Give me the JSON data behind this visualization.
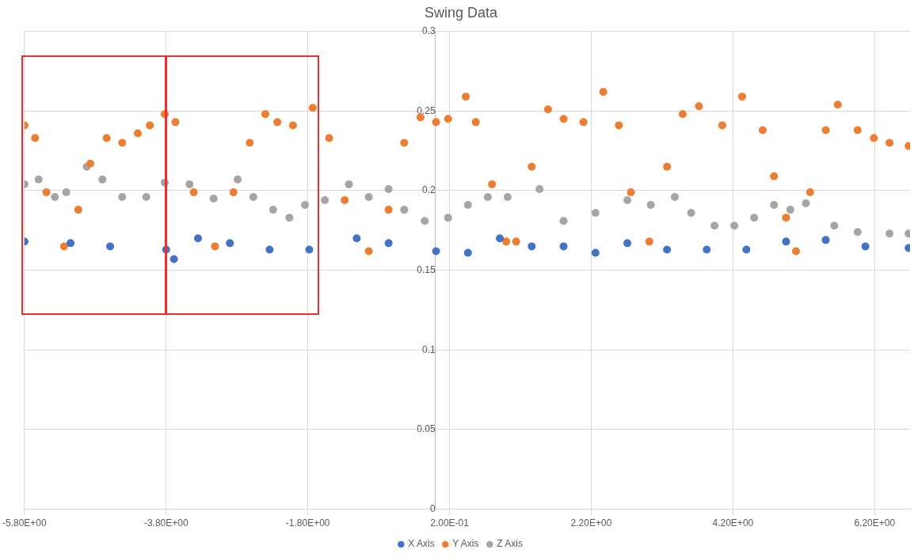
{
  "chart_data": {
    "type": "scatter",
    "title": "Swing Data",
    "marker": "circle",
    "grid": true,
    "legend": "bottom",
    "xlim": [
      -5.8,
      6.7
    ],
    "xticks": [
      {
        "value": -5.8,
        "label": "-5.80E+00"
      },
      {
        "value": -3.8,
        "label": "-3.80E+00"
      },
      {
        "value": -1.8,
        "label": "-1.80E+00"
      },
      {
        "value": 0.2,
        "label": "2.00E-01"
      },
      {
        "value": 2.2,
        "label": "2.20E+00"
      },
      {
        "value": 4.2,
        "label": "4.20E+00"
      },
      {
        "value": 6.2,
        "label": "6.20E+00"
      }
    ],
    "ylim": [
      0,
      0.3
    ],
    "yticks": [
      0,
      0.05,
      0.1,
      0.15,
      0.2,
      0.25,
      0.3
    ],
    "series": [
      {
        "name": "X Axis",
        "color": "#4472c4",
        "x": [
          -5.8,
          -5.15,
          -4.59,
          -3.8,
          -3.69,
          -3.35,
          -2.9,
          -2.34,
          -1.78,
          -1.11,
          -0.66,
          0.01,
          0.46,
          0.91,
          1.36,
          1.81,
          2.26,
          2.71,
          3.27,
          3.83,
          4.39,
          4.95,
          5.51,
          6.07,
          6.68
        ],
        "values": [
          0.168,
          0.167,
          0.165,
          0.163,
          0.157,
          0.17,
          0.167,
          0.163,
          0.163,
          0.17,
          0.167,
          0.162,
          0.161,
          0.17,
          0.165,
          0.165,
          0.161,
          0.167,
          0.163,
          0.163,
          0.163,
          0.168,
          0.169,
          0.165,
          0.164
        ]
      },
      {
        "name": "Y Axis",
        "color": "#ed7d31",
        "x": [
          -5.8,
          -5.65,
          -5.49,
          -5.24,
          -5.04,
          -4.87,
          -4.64,
          -4.42,
          -4.2,
          -4.03,
          -3.82,
          -3.67,
          -3.41,
          -3.11,
          -2.85,
          -2.62,
          -2.4,
          -2.23,
          -2.01,
          -1.73,
          -1.5,
          -1.28,
          -0.94,
          -0.66,
          -0.44,
          -0.21,
          0.01,
          0.18,
          0.43,
          0.57,
          0.8,
          1.0,
          1.14,
          1.36,
          1.59,
          1.81,
          2.09,
          2.37,
          2.59,
          2.76,
          3.02,
          3.27,
          3.49,
          3.72,
          4.05,
          4.33,
          4.62,
          4.78,
          4.95,
          5.09,
          5.29,
          5.51,
          5.68,
          5.96,
          6.19,
          6.41,
          6.68
        ],
        "values": [
          0.241,
          0.233,
          0.199,
          0.165,
          0.188,
          0.217,
          0.233,
          0.23,
          0.236,
          0.241,
          0.248,
          0.243,
          0.199,
          0.165,
          0.199,
          0.23,
          0.248,
          0.243,
          0.241,
          0.252,
          0.233,
          0.194,
          0.162,
          0.188,
          0.23,
          0.246,
          0.243,
          0.245,
          0.259,
          0.243,
          0.204,
          0.168,
          0.168,
          0.215,
          0.251,
          0.245,
          0.243,
          0.262,
          0.241,
          0.199,
          0.168,
          0.215,
          0.248,
          0.253,
          0.241,
          0.259,
          0.238,
          0.209,
          0.183,
          0.162,
          0.199,
          0.238,
          0.254,
          0.238,
          0.233,
          0.23,
          0.228
        ]
      },
      {
        "name": "Z Axis",
        "color": "#a5a5a5",
        "x": [
          -5.8,
          -5.6,
          -5.37,
          -5.21,
          -4.92,
          -4.7,
          -4.42,
          -4.08,
          -3.82,
          -3.47,
          -3.13,
          -2.79,
          -2.57,
          -2.29,
          -2.06,
          -1.84,
          -1.56,
          -1.22,
          -0.94,
          -0.66,
          -0.44,
          -0.15,
          0.18,
          0.46,
          0.74,
          1.02,
          1.47,
          1.81,
          2.26,
          2.71,
          3.04,
          3.38,
          3.61,
          3.94,
          4.22,
          4.5,
          4.78,
          5.01,
          5.23,
          5.63,
          5.96,
          6.41,
          6.68
        ],
        "values": [
          0.204,
          0.207,
          0.196,
          0.199,
          0.215,
          0.207,
          0.196,
          0.196,
          0.205,
          0.204,
          0.195,
          0.207,
          0.196,
          0.188,
          0.183,
          0.191,
          0.194,
          0.204,
          0.196,
          0.201,
          0.188,
          0.181,
          0.183,
          0.191,
          0.196,
          0.196,
          0.201,
          0.181,
          0.186,
          0.194,
          0.191,
          0.196,
          0.186,
          0.178,
          0.178,
          0.183,
          0.191,
          0.188,
          0.192,
          0.178,
          0.174,
          0.173,
          0.173
        ]
      }
    ]
  }
}
